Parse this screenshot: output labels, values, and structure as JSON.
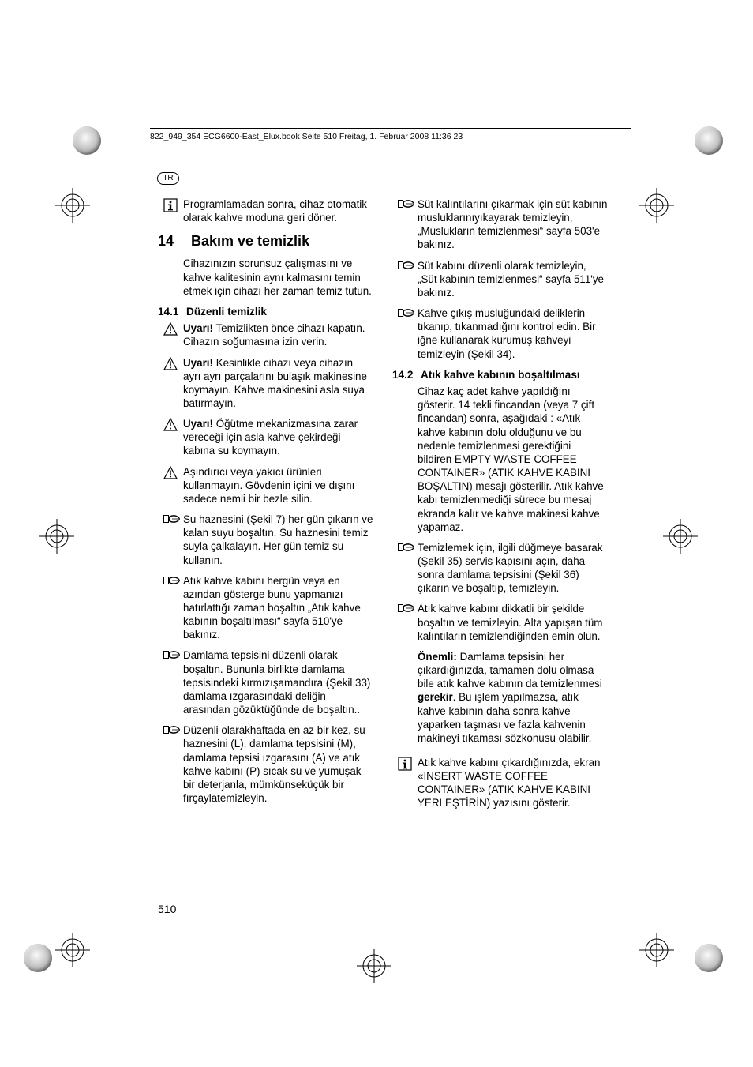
{
  "header": {
    "text": "822_949_354 ECG6600-East_Elux.book  Seite 510  Freitag, 1. Februar 2008  11:36 23"
  },
  "badge": "TR",
  "page_number": "510",
  "sections": {
    "s14": {
      "num": "14",
      "title": "Bakım ve temizlik"
    },
    "s14_1": {
      "num": "14.1",
      "title": "Düzenli temizlik"
    },
    "s14_2": {
      "num": "14.2",
      "title": "Atık kahve kabının boşaltılması"
    }
  },
  "left": [
    {
      "icon": "info",
      "text": "Programlamadan sonra, cihaz otomatik olarak  kahve moduna geri döner."
    },
    {
      "icon": "none",
      "text": "Cihazınızın sorunsuz çalışmasını ve kahve kalitesinin aynı kalmasını temin etmek için cihazı her zaman temiz tutun."
    },
    {
      "icon": "warn",
      "html": "<b>Uyarı!</b> Temizlikten önce cihazı kapatın. Cihazın soğumasına izin verin."
    },
    {
      "icon": "warn",
      "html": "<b>Uyarı!</b> Kesinlikle cihazı veya cihazın ayrı ayrı parçalarını bulaşık makinesine koymayın. Kahve makinesini asla suya batırmayın."
    },
    {
      "icon": "warn",
      "html": "<b>Uyarı!</b> Öğütme mekanizmasına zarar vereceği için asla kahve çekirdeği kabına su koymayın."
    },
    {
      "icon": "warn",
      "text": "Aşındırıcı veya yakıcı ürünleri kullanmayın. Gövdenin içini ve dışını sadece nemli bir bezle silin."
    },
    {
      "icon": "hand",
      "text": "Su haznesini (Şekil 7) her gün çıkarın ve kalan suyu boşaltın. Su haznesini temiz suyla çalkalayın. Her gün temiz su kullanın."
    },
    {
      "icon": "hand",
      "text": "Atık kahve kabını hergün veya en azından gösterge bunu yapmanızı hatırlattığı zaman boşaltın „Atık kahve kabının boşaltılması“ sayfa 510'ye bakınız."
    },
    {
      "icon": "hand",
      "text": "Damlama tepsisini düzenli olarak boşaltın. Bununla birlikte damlama tepsisindeki kırmızışamandıra (Şekil 33)  damlama ızgarasındaki deliğin arasından gözüktüğünde de boşaltın.."
    },
    {
      "icon": "hand",
      "text": "Düzenli olarakhaftada en az bir kez, su haznesini (L), damlama tepsisini (M), damlama tepsisi ızgarasını (A) ve atık kahve kabını (P)  sıcak su ve yumuşak bir deterjanla, mümkünseküçük bir fırçaylatemizleyin."
    }
  ],
  "right": [
    {
      "icon": "hand",
      "text": "Süt kalıntılarını çıkarmak için süt kabının musluklarınıyıkayarak temizleyin, „Muslukların temizlenmesi“ sayfa 503'e bakınız."
    },
    {
      "icon": "hand",
      "text": "Süt kabını düzenli olarak temizleyin, „Süt kabının temizlenmesi“ sayfa 511'ye bakınız."
    },
    {
      "icon": "hand",
      "text": "Kahve çıkış musluğundaki deliklerin tıkanıp, tıkanmadığını kontrol edin. Bir iğne kullanarak kurumuş kahveyi temizleyin (Şekil 34)."
    },
    {
      "icon": "none",
      "text": "Cihaz kaç adet kahve yapıldığını gösterir. 14 tekli fincandan (veya 7 çift fincandan) sonra, aşağıdaki : «Atık kahve kabının dolu olduğunu ve bu nedenle temizlenmesi gerektiğini bildiren EMPTY WASTE COFFEE CONTAINER» (ATIK KAHVE KABINI BOŞALTIN) mesajı gösterilir. Atık kahve kabı temizlenmediği sürece bu mesaj ekranda kalır ve kahve makinesi kahve yapamaz."
    },
    {
      "icon": "hand",
      "text": "Temizlemek için, ilgili düğmeye basarak (Şekil 35) servis kapısını açın, daha sonra damlama tepsisini (Şekil 36) çıkarın ve boşaltıp, temizleyin."
    },
    {
      "icon": "hand",
      "text": "Atık kahve kabını dikkatli bir şekilde boşaltın ve temizleyin. Alta yapışan tüm kalıntıların temizlendiğinden emin olun."
    },
    {
      "icon": "none",
      "html": "<b>Önemli:</b> Damlama tepsisini her çıkardığınızda, tamamen dolu olmasa bile atık kahve kabının da temizlenmesi <b>gerekir</b>. Bu işlem yapılmazsa, atık kahve kabının daha sonra kahve yaparken taşması ve fazla kahvenin makineyi tıkaması sözkonusu olabilir."
    },
    {
      "icon": "info",
      "text": "Atık kahve kabını çıkardığınızda, ekran «INSERT WASTE COFFEE CONTAINER» (ATIK KAHVE KABINI YERLEŞTİRİN) yazısını gösterir."
    }
  ]
}
